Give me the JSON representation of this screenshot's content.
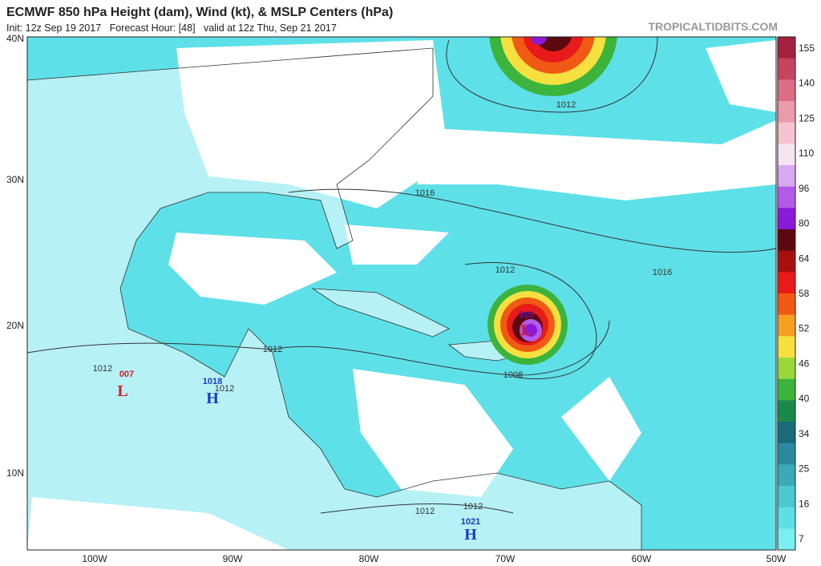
{
  "header": {
    "title": "ECMWF 850 hPa Height (dam), Wind (kt), & MSLP Centers (hPa)",
    "subtitle": "Init: 12z Sep 19 2017   Forecast Hour: [48]   valid at 12z Thu, Sep 21 2017",
    "brand": "TROPICALTIDBITS.COM"
  },
  "map": {
    "lat_labels": [
      "40N",
      "30N",
      "20N",
      "10N"
    ],
    "lon_labels": [
      "100W",
      "90W",
      "80W",
      "70W",
      "60W",
      "50W"
    ],
    "pressure_labels": [
      "1012",
      "1016",
      "1012",
      "1016",
      "1012",
      "1012",
      "1008",
      "1012",
      "1012",
      "1012",
      "915",
      "007",
      "1018",
      "1021"
    ],
    "centers": [
      "L",
      "H",
      "L",
      "H"
    ]
  },
  "colorbar": {
    "ticks": [
      "155",
      "140",
      "125",
      "110",
      "96",
      "80",
      "64",
      "58",
      "52",
      "46",
      "40",
      "34",
      "25",
      "16",
      "7"
    ],
    "colors": [
      "#a3213e",
      "#c5455e",
      "#db6e83",
      "#ea9aab",
      "#f4c3cf",
      "#f5e3f0",
      "#d8a8f0",
      "#b45ae8",
      "#8a1ad8",
      "#5c0a10",
      "#a81010",
      "#e81a1a",
      "#f05a14",
      "#f5a020",
      "#f5e040",
      "#9ad83a",
      "#3cb43c",
      "#1a8a4a",
      "#1a6a7a",
      "#2a8aa0",
      "#3aaab8",
      "#4ac8d4",
      "#5ae0e6",
      "#78f0f0"
    ]
  }
}
